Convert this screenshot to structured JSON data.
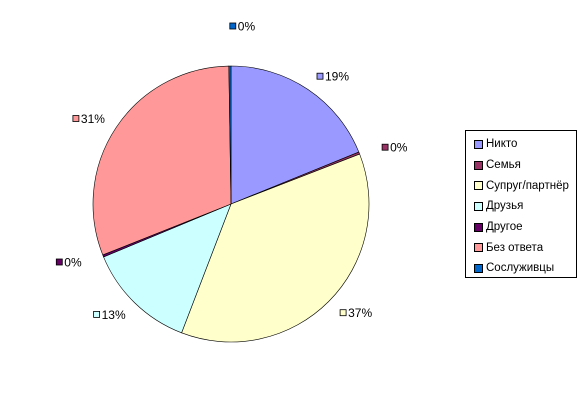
{
  "chart_data": {
    "type": "pie",
    "categories": [
      "Никто",
      "Семья",
      "Супруг/партнёр",
      "Друзья",
      "Другое",
      "Без ответа",
      "Сослуживцы"
    ],
    "values": [
      19,
      0,
      37,
      13,
      0,
      31,
      0
    ],
    "data_labels": [
      "19%",
      "0%",
      "37%",
      "13%",
      "0%",
      "31%",
      "0%"
    ],
    "colors": [
      "#9999ff",
      "#993366",
      "#ffffcc",
      "#ccffff",
      "#660066",
      "#ff9999",
      "#0066cc"
    ],
    "start_angle_deg": 0,
    "direction": "clockwise",
    "legend_position": "right"
  }
}
